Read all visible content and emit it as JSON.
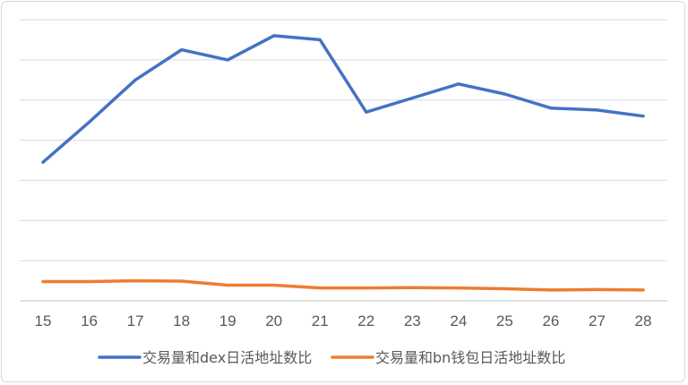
{
  "chart_data": {
    "type": "line",
    "title": "",
    "xlabel": "",
    "ylabel": "",
    "categories": [
      "15",
      "16",
      "17",
      "18",
      "19",
      "20",
      "21",
      "22",
      "23",
      "24",
      "25",
      "26",
      "27",
      "28"
    ],
    "ylim": [
      0,
      7
    ],
    "grid": true,
    "y_tick_labels_visible": false,
    "legend_position": "bottom",
    "series": [
      {
        "name": "交易量和dex日活地址数比",
        "color": "#4472C4",
        "values": [
          3.45,
          4.45,
          5.5,
          6.25,
          6.0,
          6.6,
          6.5,
          4.7,
          5.05,
          5.4,
          5.15,
          4.8,
          4.75,
          4.6
        ]
      },
      {
        "name": "交易量和bn钱包日活地址数比",
        "color": "#ED7D31",
        "values": [
          0.48,
          0.48,
          0.5,
          0.49,
          0.39,
          0.39,
          0.32,
          0.32,
          0.33,
          0.32,
          0.3,
          0.27,
          0.28,
          0.27
        ]
      }
    ]
  }
}
